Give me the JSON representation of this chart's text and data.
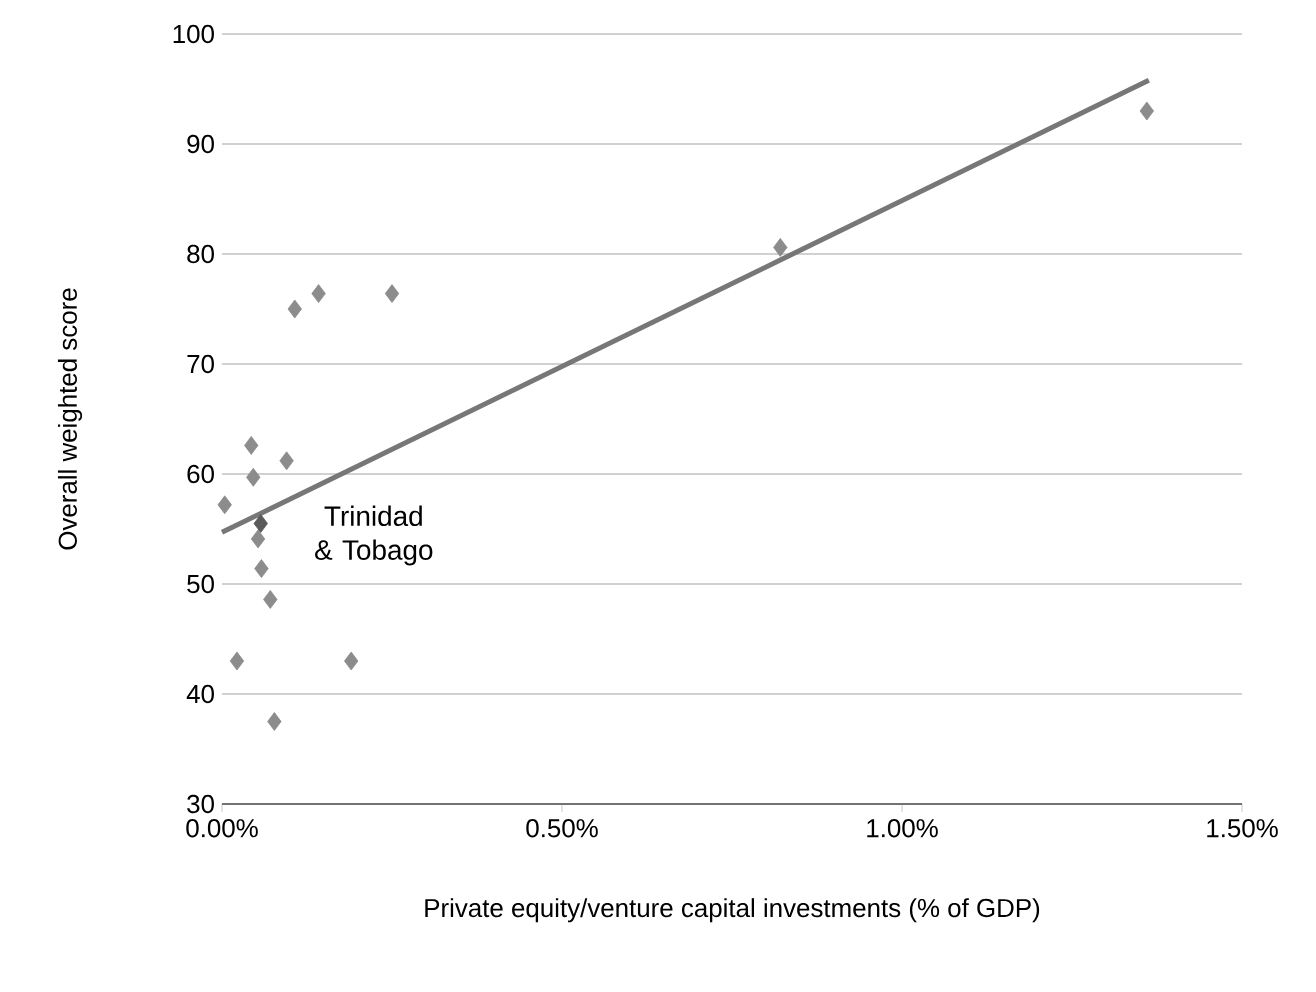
{
  "chart_data": {
    "type": "scatter",
    "xlabel": "Private equity/venture capital investments (% of GDP)",
    "ylabel": "Overall weighted score",
    "xlim": [
      0,
      1.5
    ],
    "ylim": [
      30,
      100
    ],
    "xticks": [
      {
        "value": 0,
        "label": "0.00%"
      },
      {
        "value": 0.5,
        "label": "0.50%"
      },
      {
        "value": 1.0,
        "label": "1.00%"
      },
      {
        "value": 1.5,
        "label": "1.50%"
      }
    ],
    "yticks": [
      30,
      40,
      50,
      60,
      70,
      80,
      90,
      100
    ],
    "grid": "y",
    "marker": "diamond",
    "series": [
      {
        "color": "#8c8c8c",
        "x": [
          0.004,
          0.043,
          0.046,
          0.095,
          0.053,
          0.058,
          0.071,
          0.022,
          0.19,
          0.077,
          0.107,
          0.142,
          0.25,
          0.821,
          1.36
        ],
        "values": [
          57.2,
          62.6,
          59.7,
          61.2,
          54.1,
          51.4,
          48.6,
          43.0,
          43.0,
          37.5,
          75.0,
          76.4,
          76.4,
          80.6,
          93.0
        ]
      },
      {
        "color": "#5a5a5a",
        "x": [
          0.057
        ],
        "values": [
          55.5
        ]
      },
      {
        "type": "line",
        "color": "#777777",
        "line_style": "solid",
        "marker": "none",
        "x": [
          0.0,
          1.363
        ],
        "values": [
          54.7,
          95.8
        ]
      }
    ],
    "annotations": [
      {
        "text": "Trinidad & Tobago",
        "x": 0.057,
        "y": 55.5
      }
    ]
  }
}
